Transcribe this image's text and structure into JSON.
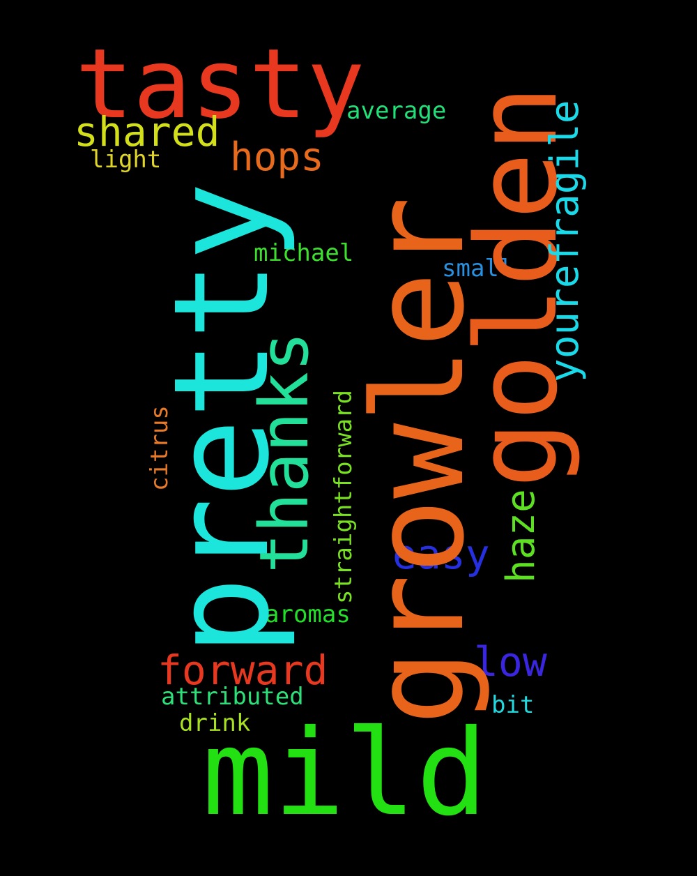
{
  "words": {
    "tasty": "tasty",
    "pretty": "pretty",
    "growler": "growler",
    "golden": "golden",
    "mild": "mild",
    "thanks": "thanks",
    "shared": "shared",
    "hops": "hops",
    "average": "average",
    "light": "light",
    "yourefragile": "yourefragile",
    "michael": "michael",
    "small": "small",
    "citrus": "citrus",
    "straightforward": "straightforward",
    "easy": "easy",
    "haze": "haze",
    "aromas": "aromas",
    "forward": "forward",
    "low": "low",
    "attributed": "attributed",
    "bit": "bit",
    "drink": "drink"
  },
  "colors": {
    "background": "#000000",
    "tasty": "#e8381f",
    "pretty": "#1ce5dc",
    "growler": "#e8641a",
    "golden": "#e85c1c",
    "mild": "#22e012",
    "thanks": "#22e09a",
    "shared": "#d3e019",
    "hops": "#e86a1c",
    "average": "#22e07a",
    "light": "#e0d62a",
    "yourefragile": "#1ad9e8",
    "michael": "#3ee030",
    "small": "#2890e0",
    "citrus": "#e87a2a",
    "straightforward": "#7ae022",
    "easy": "#2630e0",
    "haze": "#5ee022",
    "aromas": "#22e02a",
    "forward": "#e8381f",
    "low": "#3a26e0",
    "attributed": "#2ee07a",
    "bit": "#22d9e0",
    "drink": "#a8e022"
  }
}
